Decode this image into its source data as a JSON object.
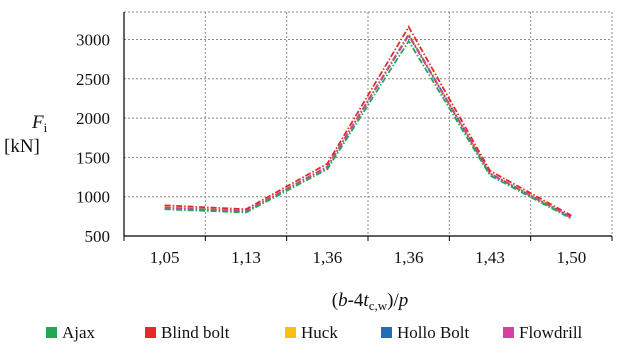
{
  "chart_data": {
    "type": "line",
    "x_categories": [
      "1,05",
      "1,13",
      "1,36",
      "1,36",
      "1,43",
      "1,50"
    ],
    "y_ticks": [
      500,
      1000,
      1500,
      2000,
      2500,
      3000
    ],
    "ylim": [
      500,
      3350
    ],
    "grid": true,
    "legend_position": "bottom",
    "ylabel": {
      "main": "F",
      "sub": "i",
      "unit": "[kN]"
    },
    "xlabel": {
      "open": "(",
      "b": "b",
      "dash": "-4",
      "t": "t",
      "sub": "c,w",
      "close": ")/",
      "p": "p"
    },
    "series": [
      {
        "name": "Ajax",
        "color": "#22a852",
        "values": [
          840,
          800,
          1350,
          2980,
          1270,
          720
        ]
      },
      {
        "name": "Blind bolt",
        "color": "#e8262b",
        "values": [
          890,
          840,
          1420,
          3160,
          1330,
          760
        ]
      },
      {
        "name": "Huck",
        "color": "#f5c011",
        "values": [
          865,
          820,
          1385,
          3070,
          1300,
          740
        ]
      },
      {
        "name": "Hollo Bolt",
        "color": "#1f6fb8",
        "values": [
          860,
          815,
          1380,
          3060,
          1295,
          735
        ]
      },
      {
        "name": "Flowdrill",
        "color": "#d93fa1",
        "values": [
          855,
          812,
          1375,
          3050,
          1290,
          732
        ]
      }
    ]
  }
}
